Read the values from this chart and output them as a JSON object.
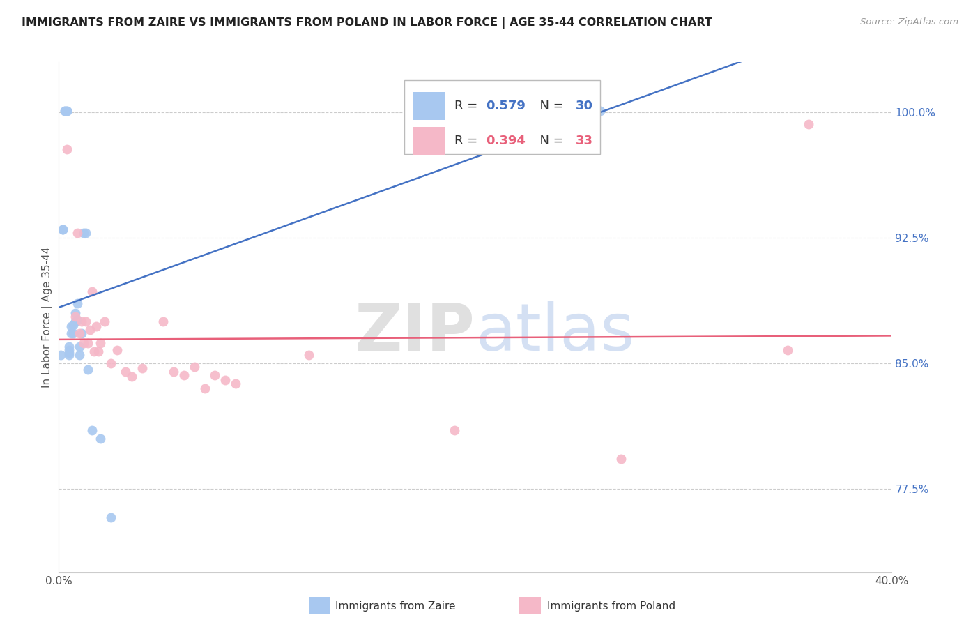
{
  "title": "IMMIGRANTS FROM ZAIRE VS IMMIGRANTS FROM POLAND IN LABOR FORCE | AGE 35-44 CORRELATION CHART",
  "source": "Source: ZipAtlas.com",
  "ylabel": "In Labor Force | Age 35-44",
  "legend_label_zaire": "Immigrants from Zaire",
  "legend_label_poland": "Immigrants from Poland",
  "r_zaire": 0.579,
  "n_zaire": 30,
  "r_poland": 0.394,
  "n_poland": 33,
  "color_zaire": "#a8c8f0",
  "color_poland": "#f5b8c8",
  "line_color_zaire": "#4472c4",
  "line_color_poland": "#e8607a",
  "xlim": [
    0.0,
    0.4
  ],
  "ylim": [
    0.725,
    1.03
  ],
  "yticks": [
    0.775,
    0.85,
    0.925,
    1.0
  ],
  "ytick_labels": [
    "77.5%",
    "85.0%",
    "92.5%",
    "100.0%"
  ],
  "xticks": [
    0.0,
    0.05,
    0.1,
    0.15,
    0.2,
    0.25,
    0.3,
    0.35,
    0.4
  ],
  "xtick_labels": [
    "0.0%",
    "",
    "",
    "",
    "",
    "",
    "",
    "",
    "40.0%"
  ],
  "watermark_zip": "ZIP",
  "watermark_atlas": "atlas",
  "zaire_x": [
    0.001,
    0.002,
    0.002,
    0.003,
    0.003,
    0.004,
    0.004,
    0.005,
    0.005,
    0.005,
    0.005,
    0.006,
    0.006,
    0.007,
    0.007,
    0.008,
    0.008,
    0.009,
    0.009,
    0.01,
    0.01,
    0.011,
    0.012,
    0.013,
    0.014,
    0.016,
    0.02,
    0.025,
    0.19,
    0.26
  ],
  "zaire_y": [
    0.855,
    0.93,
    0.93,
    1.001,
    1.001,
    1.001,
    1.001,
    0.855,
    0.856,
    0.858,
    0.86,
    0.868,
    0.872,
    0.868,
    0.873,
    0.875,
    0.88,
    0.876,
    0.886,
    0.855,
    0.86,
    0.868,
    0.928,
    0.928,
    0.846,
    0.81,
    0.805,
    0.758,
    1.001,
    1.001
  ],
  "poland_x": [
    0.004,
    0.008,
    0.009,
    0.01,
    0.011,
    0.012,
    0.013,
    0.014,
    0.015,
    0.016,
    0.017,
    0.018,
    0.019,
    0.02,
    0.022,
    0.025,
    0.028,
    0.032,
    0.035,
    0.04,
    0.05,
    0.055,
    0.06,
    0.065,
    0.07,
    0.075,
    0.08,
    0.085,
    0.12,
    0.19,
    0.27,
    0.35,
    0.36
  ],
  "poland_y": [
    0.978,
    0.878,
    0.928,
    0.868,
    0.875,
    0.862,
    0.875,
    0.862,
    0.87,
    0.893,
    0.857,
    0.872,
    0.857,
    0.862,
    0.875,
    0.85,
    0.858,
    0.845,
    0.842,
    0.847,
    0.875,
    0.845,
    0.843,
    0.848,
    0.835,
    0.843,
    0.84,
    0.838,
    0.855,
    0.81,
    0.793,
    0.858,
    0.993
  ]
}
